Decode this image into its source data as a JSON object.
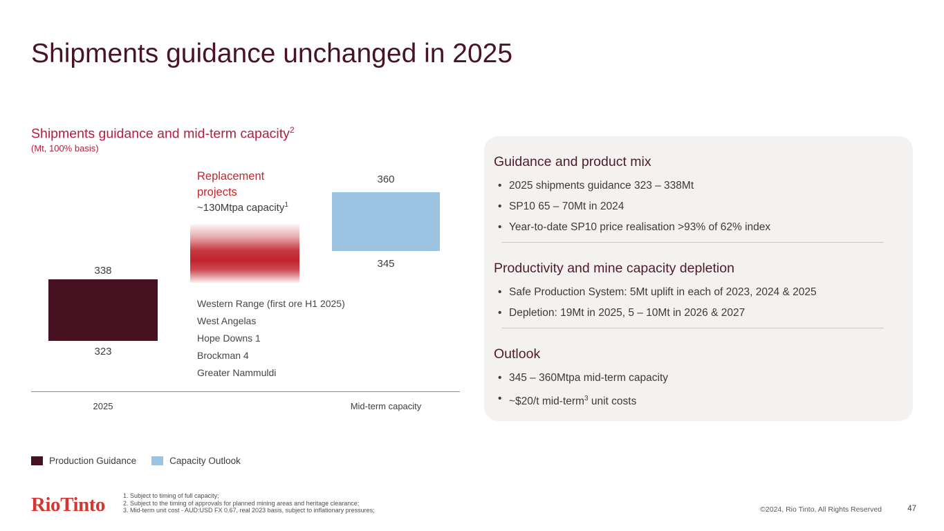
{
  "slide": {
    "title": "Shipments guidance unchanged in 2025",
    "page_number": "47",
    "copyright": "©2024, Rio Tinto, All Rights Reserved",
    "logo": "Rio Tinto"
  },
  "chart": {
    "heading": "Shipments guidance and mid-term capacity",
    "heading_sup": "2",
    "units_label": "(Mt, 100% basis)",
    "bar_2025": {
      "top_label": "338",
      "bottom_label": "323"
    },
    "bar_midterm": {
      "top_label": "360",
      "bottom_label": "345"
    },
    "replacement": {
      "title_line1": "Replacement",
      "title_line2": "projects",
      "capacity_label": "~130Mtpa capacity",
      "capacity_sup": "1"
    },
    "projects": [
      "Western Range (first ore H1 2025)",
      "West Angelas",
      "Hope Downs 1",
      "Brockman 4",
      "Greater Nammuldi"
    ],
    "x_labels": [
      "2025",
      "Mid-term capacity"
    ],
    "legend": [
      {
        "label": "Production Guidance",
        "color": "#461222"
      },
      {
        "label": "Capacity Outlook",
        "color": "#9cc3e1"
      }
    ]
  },
  "chart_data": {
    "type": "bar",
    "subtype": "floating-range-columns",
    "title": "Shipments guidance and mid-term capacity",
    "units": "Mt, 100% basis",
    "categories": [
      "2025",
      "Mid-term capacity"
    ],
    "series": [
      {
        "name": "Production Guidance",
        "category": "2025",
        "low": 323,
        "high": 338,
        "color": "#461222"
      },
      {
        "name": "Replacement projects",
        "category": "between-columns",
        "label": "~130Mtpa capacity",
        "color": "#c0232b",
        "style": "vertical-fade-gradient"
      },
      {
        "name": "Capacity Outlook",
        "category": "Mid-term capacity",
        "low": 345,
        "high": 360,
        "color": "#9cc3e1"
      }
    ],
    "annotations": [
      "Western Range (first ore H1 2025)",
      "West Angelas",
      "Hope Downs 1",
      "Brockman 4",
      "Greater Nammuldi"
    ],
    "legend_entries": [
      "Production Guidance",
      "Capacity Outlook"
    ],
    "legend_position": "bottom-left",
    "axes": "no y-axis; single horizontal baseline under categories"
  },
  "panel": {
    "sections": [
      {
        "heading": "Guidance and product mix",
        "bullets": [
          "2025 shipments guidance 323 – 338Mt",
          "SP10 65 – 70Mt in 2024",
          "Year-to-date SP10 price realisation >93% of 62% index"
        ]
      },
      {
        "heading": "Productivity and mine capacity depletion",
        "bullets": [
          "Safe Production System: 5Mt uplift in each of 2023, 2024 & 2025",
          "Depletion: 19Mt in 2025, 5 – 10Mt in 2026 & 2027"
        ]
      },
      {
        "heading": "Outlook",
        "bullets": [
          "345 – 360Mtpa mid-term capacity",
          {
            "pre": "~$20/t mid-term",
            "sup": "3",
            "post": " unit costs"
          }
        ]
      }
    ]
  },
  "footnotes": [
    "1. Subject to timing of full capacity;",
    "2. Subject to the timing of approvals for planned mining areas and heritage clearance;",
    "3. Mid-term unit cost - AUD:USD FX 0.67, real 2023 basis, subject to inflationary pressures;"
  ],
  "colors": {
    "title_maroon": "#481425",
    "heading_crimson": "#b21f3e",
    "replacement_red": "#c5262d",
    "bar_maroon": "#461222",
    "bar_blue": "#9cc3e1",
    "panel_bg": "#f3f2f0",
    "logo_red": "#d43732"
  }
}
